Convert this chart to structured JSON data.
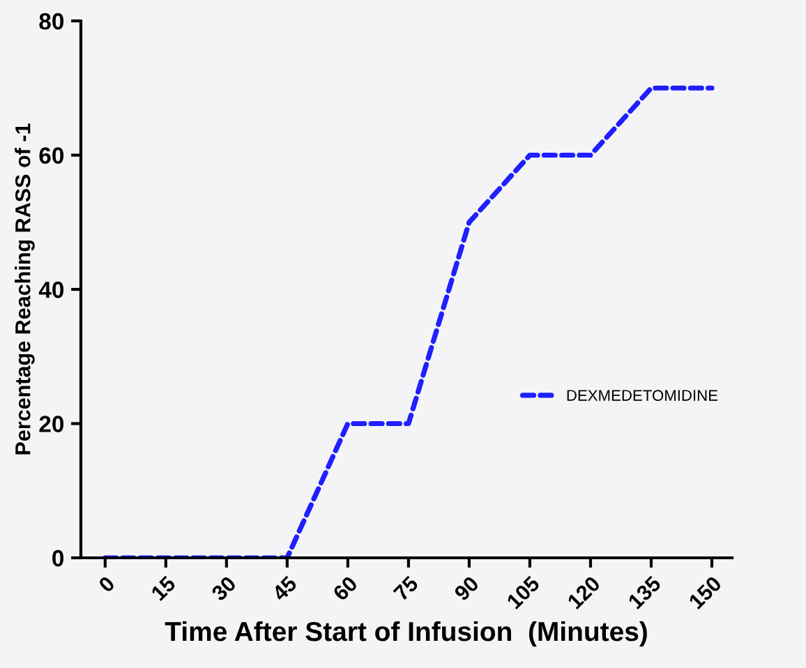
{
  "chart_data": {
    "type": "line",
    "xlabel": "Time After Start of Infusion  (Minutes)",
    "ylabel": "Percentage Reaching RASS of -1",
    "x": [
      0,
      15,
      30,
      45,
      60,
      75,
      90,
      105,
      120,
      135,
      150
    ],
    "series": [
      {
        "name": "DEXMEDETOMIDINE",
        "color": "#1f1fff",
        "values": [
          0,
          0,
          0,
          0,
          20,
          20,
          50,
          60,
          60,
          70,
          70
        ]
      }
    ],
    "xlim": [
      -6,
      155
    ],
    "xticks": [
      0,
      15,
      30,
      45,
      60,
      75,
      90,
      105,
      120,
      135,
      150
    ],
    "ylim": [
      0,
      80
    ],
    "yticks": [
      0,
      20,
      40,
      60,
      80
    ],
    "line_style": "dashed",
    "marker": "none",
    "legend": "right",
    "grid": false
  }
}
